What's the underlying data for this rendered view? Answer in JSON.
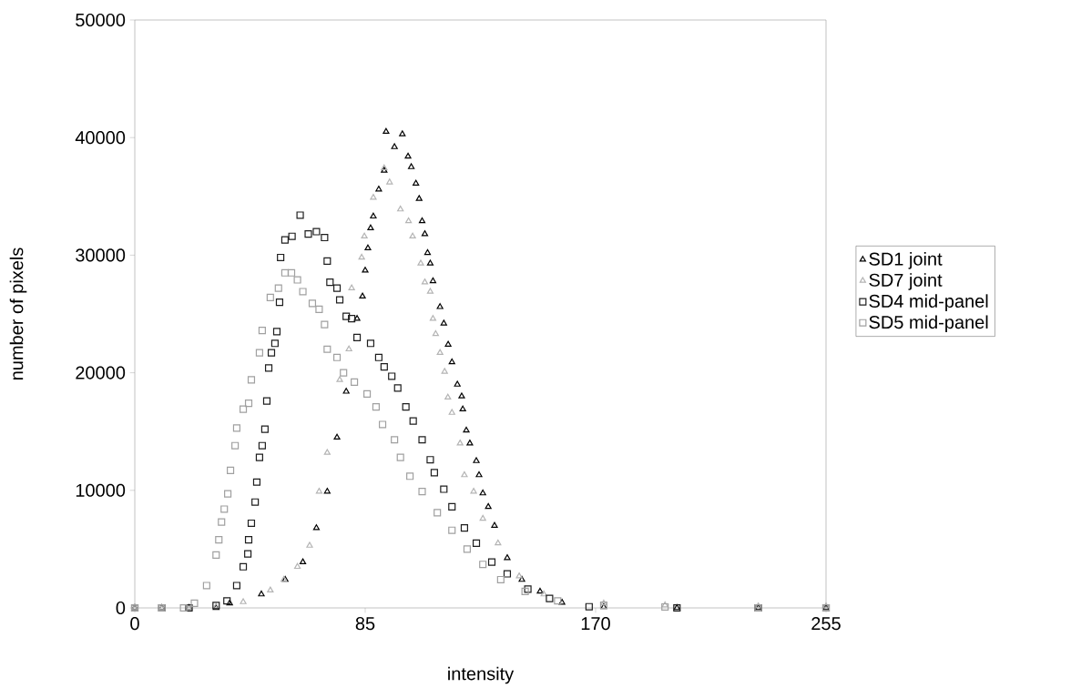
{
  "chart_data": {
    "type": "scatter",
    "xlabel": "intensity",
    "ylabel": "number of pixels",
    "xlim": [
      0,
      255
    ],
    "ylim": [
      0,
      50000
    ],
    "xticks": [
      0,
      85,
      170,
      255
    ],
    "yticks": [
      0,
      10000,
      20000,
      30000,
      40000,
      50000
    ],
    "grid": false,
    "legend": "right",
    "series": [
      {
        "name": "SD1 joint",
        "color": "#000000",
        "marker": "triangle",
        "x": [
          0,
          10,
          20,
          30,
          35,
          46.7,
          55.5,
          62,
          67,
          71,
          74.6,
          78,
          82,
          84,
          85,
          86,
          87,
          88,
          90,
          92,
          92.7,
          95.8,
          98.7,
          100.8,
          102,
          103.7,
          104.9,
          106,
          107,
          108,
          109,
          110,
          112.6,
          114,
          115.6,
          117,
          119,
          120.6,
          121,
          122.3,
          123.6,
          126,
          127,
          128.4,
          130.4,
          132.7,
          137.4,
          142.8,
          149.5,
          157.6,
          173,
          200,
          230,
          255
        ],
        "values": [
          0,
          0,
          0,
          0,
          400,
          1160,
          2400,
          3900,
          6800,
          9900,
          14500,
          18400,
          24600,
          26500,
          28700,
          30600,
          32300,
          33300,
          35600,
          37200,
          40500,
          39200,
          40300,
          38400,
          37500,
          36100,
          34800,
          32900,
          31800,
          30200,
          29300,
          27800,
          25600,
          24200,
          22400,
          20900,
          19000,
          18000,
          16900,
          15100,
          14000,
          12500,
          11300,
          9750,
          8600,
          7000,
          4250,
          2400,
          1400,
          460,
          80,
          0,
          0,
          0
        ]
      },
      {
        "name": "SD7 joint",
        "color": "#b4b4b4",
        "marker": "triangle",
        "x": [
          0,
          10,
          20,
          30,
          40,
          50,
          55,
          60,
          64.5,
          68,
          71,
          75.6,
          79,
          80,
          83.7,
          84.7,
          88,
          92,
          94,
          98,
          101,
          102.5,
          105.5,
          107,
          109,
          110,
          111,
          112.6,
          114.3,
          115.5,
          117,
          120,
          121.6,
          125,
          128.4,
          134,
          141.8,
          150.9,
          173,
          195.6,
          230,
          255
        ],
        "values": [
          0,
          0,
          0,
          100,
          500,
          1500,
          2400,
          3500,
          5300,
          9900,
          13200,
          19400,
          22000,
          27200,
          29800,
          31600,
          34900,
          37400,
          36200,
          33900,
          32900,
          31600,
          29300,
          27700,
          26900,
          24600,
          23300,
          21700,
          20100,
          17900,
          16600,
          14000,
          11300,
          9900,
          7600,
          5500,
          2700,
          1160,
          390,
          230,
          150,
          150
        ]
      },
      {
        "name": "SD4 mid-panel",
        "color": "#1e1e1e",
        "marker": "square",
        "x": [
          0,
          10,
          20,
          30,
          34,
          37.6,
          40,
          41.7,
          42,
          43,
          44.4,
          45,
          46,
          47,
          48,
          48.7,
          49.4,
          50.4,
          51.7,
          52.4,
          53.4,
          53.8,
          55.4,
          58,
          61,
          64,
          67,
          70,
          71,
          72,
          74.6,
          75.6,
          78,
          80,
          82,
          87,
          90,
          92,
          94.8,
          97,
          100,
          102.7,
          106,
          109,
          110.5,
          114,
          117,
          121.6,
          126,
          131.7,
          137.4,
          145,
          153,
          167.6,
          200,
          230,
          255
        ],
        "values": [
          0,
          0,
          0,
          200,
          600,
          1900,
          3500,
          4600,
          5800,
          7200,
          9000,
          10700,
          12800,
          13800,
          15200,
          17600,
          20400,
          21700,
          22500,
          23500,
          26000,
          29800,
          31300,
          31600,
          33400,
          31800,
          32000,
          31500,
          29500,
          27700,
          27200,
          26200,
          24800,
          24600,
          23000,
          22500,
          21300,
          20500,
          19700,
          18700,
          17100,
          15900,
          14300,
          12600,
          11500,
          10100,
          8600,
          6800,
          5500,
          3900,
          2900,
          1600,
          800,
          100,
          0,
          0,
          0
        ]
      },
      {
        "name": "SD5 mid-panel",
        "color": "#a0a0a0",
        "marker": "square",
        "x": [
          0,
          10,
          18,
          22,
          26.5,
          30,
          31,
          32,
          33,
          34.3,
          35.3,
          37,
          37.6,
          40,
          42,
          43,
          46,
          47,
          50,
          53,
          55.4,
          57.8,
          60,
          62,
          65.5,
          68,
          70,
          71,
          74.6,
          77,
          81,
          85.7,
          89,
          91.4,
          95.8,
          98,
          101.5,
          106,
          111.6,
          117,
          122.6,
          128.4,
          135,
          144,
          156,
          173,
          195.6,
          230,
          255
        ],
        "values": [
          0,
          0,
          0,
          400,
          1900,
          4500,
          5800,
          7300,
          8400,
          9700,
          11700,
          13800,
          15300,
          16900,
          17400,
          19400,
          21700,
          23600,
          26400,
          27200,
          28500,
          28500,
          27900,
          26900,
          25900,
          25400,
          24100,
          22000,
          21300,
          20000,
          19200,
          18200,
          17100,
          15600,
          14300,
          12800,
          11200,
          9900,
          8100,
          6600,
          5000,
          3700,
          2400,
          1400,
          600,
          230,
          80,
          0,
          0
        ]
      }
    ]
  }
}
